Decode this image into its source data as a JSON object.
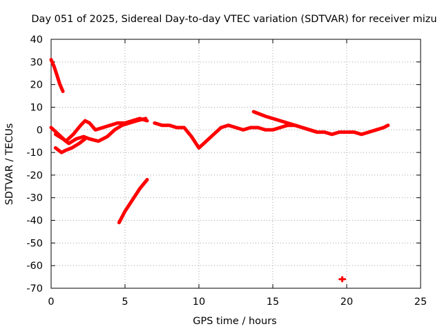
{
  "chart_data": {
    "type": "scatter",
    "title": "Day 051 of 2025, Sidereal Day-to-day VTEC variation (SDTVAR) for receiver mizu",
    "xlabel": "GPS time / hours",
    "ylabel": "SDTVAR / TECUs",
    "xlim": [
      0,
      25
    ],
    "ylim": [
      -70,
      40
    ],
    "xticks": [
      "0",
      "5",
      "10",
      "15",
      "20",
      "25"
    ],
    "yticks": [
      "40",
      "30",
      "20",
      "10",
      "0",
      "-10",
      "-20",
      "-30",
      "-40",
      "-50",
      "-60",
      "-70"
    ],
    "grid": true,
    "color": "#ff0000",
    "series": [
      {
        "name": "track-1",
        "x": [
          0.0,
          0.2,
          0.4,
          0.6,
          0.8
        ],
        "y": [
          31,
          28,
          24,
          20,
          17
        ]
      },
      {
        "name": "track-2",
        "x": [
          0.0,
          0.5,
          1.0,
          1.5,
          2.0,
          2.3,
          2.6,
          3.0,
          3.5,
          4.0,
          4.5,
          5.0,
          5.5,
          6.0,
          6.5
        ],
        "y": [
          1,
          -2,
          -5,
          -2,
          2,
          4,
          3,
          0,
          1,
          2,
          3,
          3,
          4,
          5,
          4
        ]
      },
      {
        "name": "track-3",
        "x": [
          0.3,
          0.8,
          1.2,
          1.7,
          2.2,
          2.6,
          3.2,
          3.8,
          4.3,
          4.8,
          5.3,
          5.8,
          6.4
        ],
        "y": [
          -2,
          -4,
          -6,
          -4,
          -3,
          -4,
          -5,
          -3,
          0,
          2,
          3,
          4,
          5
        ]
      },
      {
        "name": "track-4",
        "x": [
          0.3,
          0.7,
          1.0,
          1.4,
          1.9,
          2.3
        ],
        "y": [
          -8,
          -10,
          -9,
          -8,
          -6,
          -4
        ]
      },
      {
        "name": "track-5",
        "x": [
          4.6,
          5.0,
          5.5,
          6.0,
          6.5
        ],
        "y": [
          -41,
          -36,
          -31,
          -26,
          -22
        ]
      },
      {
        "name": "track-6",
        "x": [
          7.0,
          7.5,
          8.0,
          8.5,
          9.0,
          9.5,
          10.0,
          10.5,
          11.0,
          11.5,
          12.0,
          12.5,
          13.0,
          13.5,
          14.0,
          14.5,
          15.0,
          15.5,
          16.0,
          16.5,
          17.0,
          17.5,
          18.0,
          18.5,
          19.0,
          19.5,
          20.0,
          20.5,
          21.0,
          21.5,
          22.0,
          22.5,
          22.8
        ],
        "y": [
          3,
          2,
          2,
          1,
          1,
          -3,
          -8,
          -5,
          -2,
          1,
          2,
          1,
          0,
          1,
          1,
          0,
          0,
          1,
          2,
          2,
          1,
          0,
          -1,
          -1,
          -2,
          -1,
          -1,
          -1,
          -2,
          -1,
          0,
          1,
          2
        ]
      },
      {
        "name": "track-7",
        "x": [
          13.7,
          14.5,
          15.5,
          16.5,
          17.0,
          17.5,
          18.0
        ],
        "y": [
          8,
          6,
          4,
          2,
          1,
          0,
          -1
        ]
      },
      {
        "name": "track-8",
        "x": [
          19.7
        ],
        "y": [
          -66
        ]
      }
    ]
  }
}
